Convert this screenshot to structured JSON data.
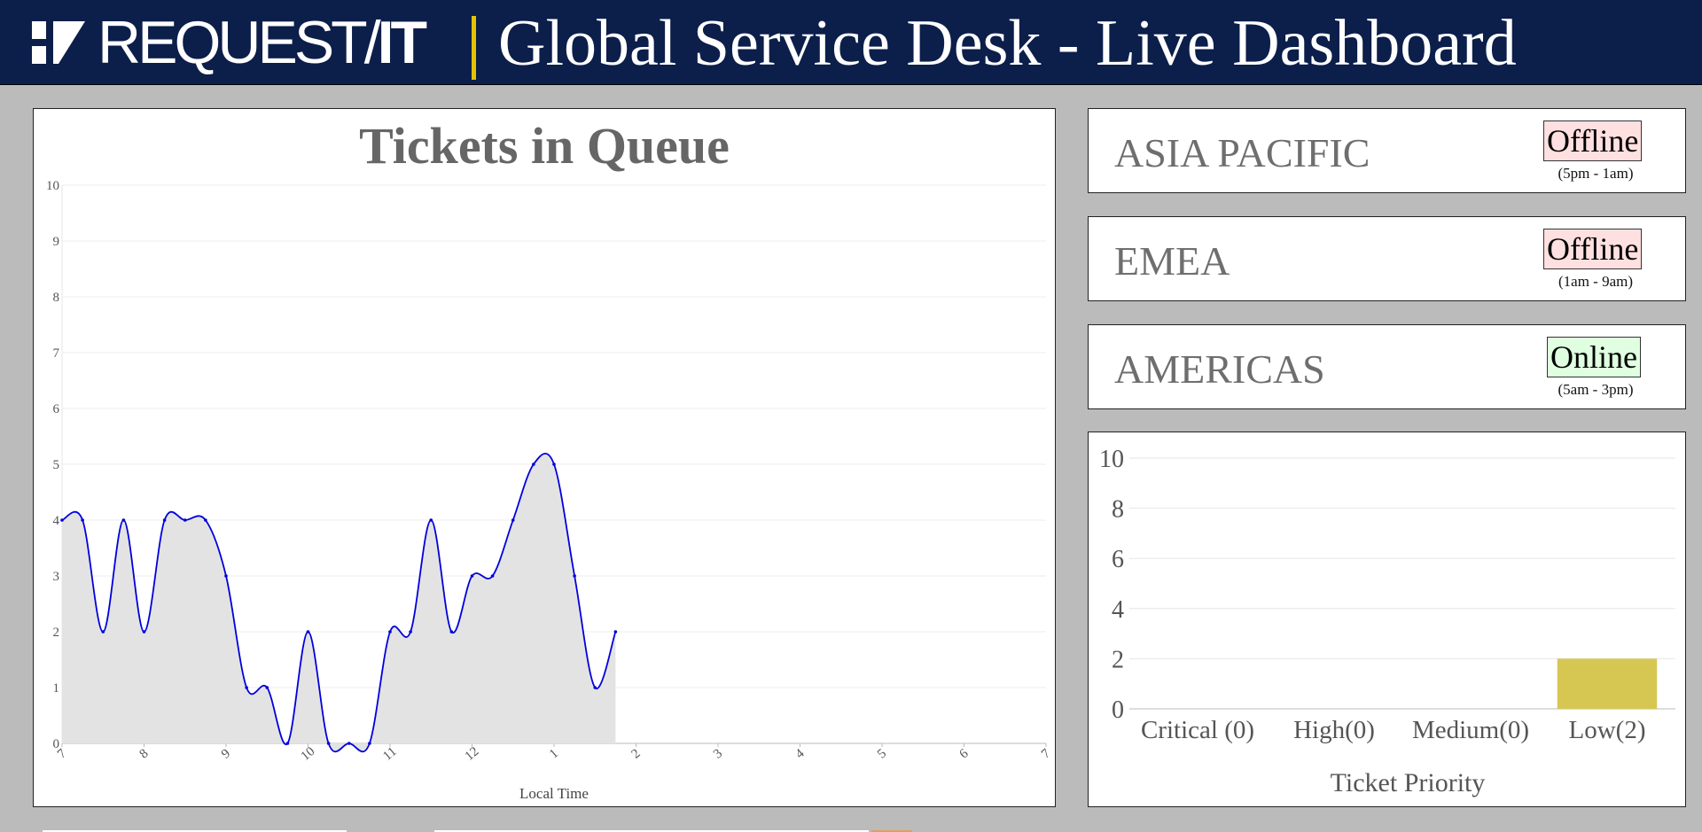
{
  "header": {
    "logo_text": "REQUEST/",
    "logo_it": "IT",
    "title": "Global Service Desk - Live Dashboard"
  },
  "queue": {
    "title": "Tickets in Queue",
    "xlabel": "Local Time"
  },
  "regions": [
    {
      "name": "ASIA PACIFIC",
      "status": "Offline",
      "hours": "(5pm - 1am)"
    },
    {
      "name": "EMEA",
      "status": "Offline",
      "hours": "(1am - 9am)"
    },
    {
      "name": "AMERICAS",
      "status": "Online",
      "hours": "(5am - 3pm)"
    }
  ],
  "colors": {
    "header_bg": "#0c1e4a",
    "accent_yellow": "#e2c400",
    "line_blue": "#0000dd",
    "area_fill": "#e3e3e3",
    "bar_gold": "#d6c753",
    "offline_bg": "#ffe0e0",
    "online_bg": "#e0ffe0"
  },
  "chart_data": [
    {
      "type": "area",
      "title": "Tickets in Queue",
      "xlabel": "Local Time",
      "ylabel": "",
      "ylim": [
        0,
        10
      ],
      "yticks": [
        0,
        1,
        2,
        3,
        4,
        5,
        6,
        7,
        8,
        9,
        10
      ],
      "xlim": [
        7,
        19
      ],
      "xtick_labels": [
        "7",
        "8",
        "9",
        "10",
        "11",
        "12",
        "1",
        "2",
        "3",
        "4",
        "5",
        "6",
        "7"
      ],
      "grid": true,
      "smooth": true,
      "x": [
        7,
        7.25,
        7.5,
        7.75,
        8,
        8.25,
        8.5,
        8.75,
        9,
        9.25,
        9.5,
        9.75,
        10,
        10.25,
        10.5,
        10.75,
        11,
        11.25,
        11.5,
        11.75,
        12,
        12.25,
        12.5,
        12.75,
        13,
        13.25,
        13.5,
        13.75
      ],
      "y": [
        4,
        4,
        2,
        4,
        2,
        4,
        4,
        4,
        3,
        1,
        1,
        0,
        2,
        0,
        0,
        0,
        2,
        2,
        4,
        2,
        3,
        3,
        4,
        5,
        5,
        3,
        1,
        2
      ]
    },
    {
      "type": "bar",
      "title": "",
      "xlabel": "Ticket Priority",
      "ylabel": "",
      "ylim": [
        0,
        10
      ],
      "yticks": [
        0,
        2,
        4,
        6,
        8,
        10
      ],
      "grid": true,
      "categories": [
        "Critical (0)",
        "High(0)",
        "Medium(0)",
        "Low(2)"
      ],
      "values": [
        0,
        0,
        0,
        2
      ]
    }
  ]
}
